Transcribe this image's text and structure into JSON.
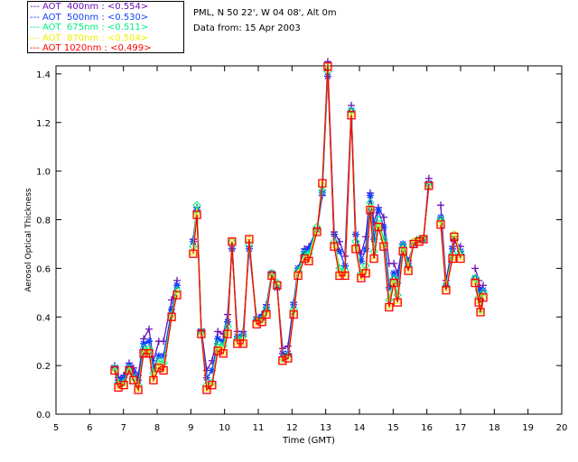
{
  "header": {
    "location": "PML, N 50 22', W 04 08', Alt 0m",
    "date": "Data from: 15 Apr 2003"
  },
  "chart_data": {
    "type": "line",
    "title": "",
    "xlabel": "Time (GMT)",
    "ylabel": "Aerosol Optical Thickness",
    "xlim": [
      5,
      20
    ],
    "ylim": [
      0,
      1.433
    ],
    "xticks": [
      "5",
      "6",
      "7",
      "8",
      "9",
      "10",
      "11",
      "12",
      "13",
      "14",
      "15",
      "16",
      "17",
      "18",
      "19",
      "20"
    ],
    "yticks": [
      "0.0",
      "0.2",
      "0.4",
      "0.6",
      "0.8",
      "1.0",
      "1.2",
      "1.4"
    ],
    "legend_position": "top-left outside",
    "x": [
      6.74,
      6.85,
      7.01,
      7.17,
      7.3,
      7.44,
      7.6,
      7.76,
      7.89,
      8.05,
      8.19,
      8.43,
      8.59,
      9.07,
      9.18,
      9.31,
      9.47,
      9.63,
      9.8,
      9.96,
      10.09,
      10.22,
      10.38,
      10.55,
      10.73,
      10.95,
      11.11,
      11.24,
      11.4,
      11.56,
      11.72,
      11.88,
      12.05,
      12.18,
      12.37,
      12.5,
      12.74,
      12.9,
      13.06,
      13.25,
      13.41,
      13.57,
      13.76,
      13.89,
      14.05,
      14.19,
      14.32,
      14.43,
      14.56,
      14.72,
      14.88,
      15.02,
      15.13,
      15.29,
      15.45,
      15.61,
      15.77,
      15.9,
      16.06,
      16.41,
      16.57,
      16.76,
      16.81,
      17.0,
      17.43,
      17.54,
      17.59,
      17.67
    ],
    "series": [
      {
        "name": "AOT  400nm : <0.554>",
        "color": "#6a10b8",
        "marker": "plus",
        "values": [
          0.2,
          0.15,
          0.16,
          0.21,
          0.19,
          0.16,
          0.31,
          0.35,
          0.22,
          0.3,
          0.3,
          0.47,
          0.55,
          0.72,
          0.85,
          0.35,
          0.18,
          0.22,
          0.34,
          0.33,
          0.41,
          0.68,
          0.34,
          0.34,
          0.69,
          0.4,
          0.41,
          0.45,
          0.58,
          0.52,
          0.27,
          0.28,
          0.46,
          0.6,
          0.68,
          0.69,
          0.76,
          0.9,
          1.45,
          0.75,
          0.71,
          0.65,
          1.27,
          0.74,
          0.66,
          0.73,
          0.91,
          0.79,
          0.85,
          0.81,
          0.62,
          0.62,
          0.58,
          0.7,
          0.63,
          0.7,
          0.72,
          0.72,
          0.97,
          0.86,
          0.55,
          0.69,
          0.71,
          0.69,
          0.6,
          0.55,
          0.51,
          0.53
        ]
      },
      {
        "name": "AOT  500nm : <0.530>",
        "color": "#1040ff",
        "marker": "star",
        "values": [
          0.19,
          0.14,
          0.15,
          0.2,
          0.17,
          0.14,
          0.29,
          0.3,
          0.19,
          0.24,
          0.24,
          0.43,
          0.53,
          0.71,
          0.84,
          0.34,
          0.15,
          0.18,
          0.31,
          0.3,
          0.38,
          0.68,
          0.32,
          0.33,
          0.68,
          0.39,
          0.4,
          0.44,
          0.58,
          0.52,
          0.25,
          0.25,
          0.45,
          0.6,
          0.67,
          0.68,
          0.76,
          0.91,
          1.39,
          0.74,
          0.67,
          0.61,
          1.25,
          0.74,
          0.63,
          0.68,
          0.9,
          0.72,
          0.84,
          0.77,
          0.52,
          0.58,
          0.54,
          0.7,
          0.62,
          0.7,
          0.72,
          0.72,
          0.95,
          0.81,
          0.53,
          0.68,
          0.72,
          0.67,
          0.56,
          0.51,
          0.47,
          0.51
        ]
      },
      {
        "name": "AOT  675nm : <0.511>",
        "color": "#00f080",
        "marker": "diamond",
        "values": [
          0.19,
          0.13,
          0.13,
          0.19,
          0.15,
          0.12,
          0.27,
          0.27,
          0.17,
          0.22,
          0.21,
          0.41,
          0.51,
          0.69,
          0.86,
          0.34,
          0.12,
          0.13,
          0.29,
          0.28,
          0.36,
          0.71,
          0.31,
          0.32,
          0.7,
          0.39,
          0.39,
          0.43,
          0.58,
          0.54,
          0.23,
          0.24,
          0.43,
          0.59,
          0.66,
          0.66,
          0.77,
          0.92,
          1.41,
          0.71,
          0.6,
          0.59,
          1.25,
          0.71,
          0.58,
          0.61,
          0.87,
          0.67,
          0.8,
          0.72,
          0.47,
          0.56,
          0.49,
          0.69,
          0.61,
          0.71,
          0.72,
          0.72,
          0.94,
          0.8,
          0.53,
          0.66,
          0.74,
          0.66,
          0.56,
          0.48,
          0.43,
          0.5
        ]
      },
      {
        "name": "AOT  870nm : <0.504>",
        "color": "#f0f000",
        "marker": "triangle",
        "values": [
          0.18,
          0.12,
          0.12,
          0.18,
          0.14,
          0.11,
          0.25,
          0.26,
          0.15,
          0.2,
          0.19,
          0.4,
          0.5,
          0.67,
          0.83,
          0.33,
          0.11,
          0.12,
          0.27,
          0.26,
          0.34,
          0.71,
          0.3,
          0.3,
          0.72,
          0.38,
          0.38,
          0.42,
          0.57,
          0.53,
          0.22,
          0.23,
          0.42,
          0.58,
          0.64,
          0.64,
          0.76,
          0.95,
          1.43,
          0.7,
          0.58,
          0.58,
          1.24,
          0.69,
          0.57,
          0.59,
          0.85,
          0.64,
          0.78,
          0.7,
          0.45,
          0.55,
          0.47,
          0.68,
          0.6,
          0.71,
          0.72,
          0.72,
          0.94,
          0.79,
          0.52,
          0.65,
          0.74,
          0.65,
          0.55,
          0.47,
          0.43,
          0.49
        ]
      },
      {
        "name": "AOT 1020nm : <0.499>",
        "color": "#ff0000",
        "marker": "square",
        "values": [
          0.18,
          0.11,
          0.12,
          0.18,
          0.14,
          0.1,
          0.25,
          0.25,
          0.14,
          0.19,
          0.18,
          0.4,
          0.49,
          0.66,
          0.82,
          0.33,
          0.1,
          0.12,
          0.26,
          0.25,
          0.33,
          0.71,
          0.29,
          0.29,
          0.72,
          0.37,
          0.38,
          0.41,
          0.57,
          0.53,
          0.22,
          0.23,
          0.41,
          0.57,
          0.64,
          0.63,
          0.75,
          0.95,
          1.43,
          0.69,
          0.57,
          0.57,
          1.23,
          0.68,
          0.56,
          0.58,
          0.84,
          0.64,
          0.77,
          0.69,
          0.44,
          0.54,
          0.46,
          0.67,
          0.59,
          0.7,
          0.71,
          0.72,
          0.94,
          0.78,
          0.51,
          0.64,
          0.73,
          0.64,
          0.54,
          0.46,
          0.42,
          0.48
        ]
      }
    ]
  }
}
